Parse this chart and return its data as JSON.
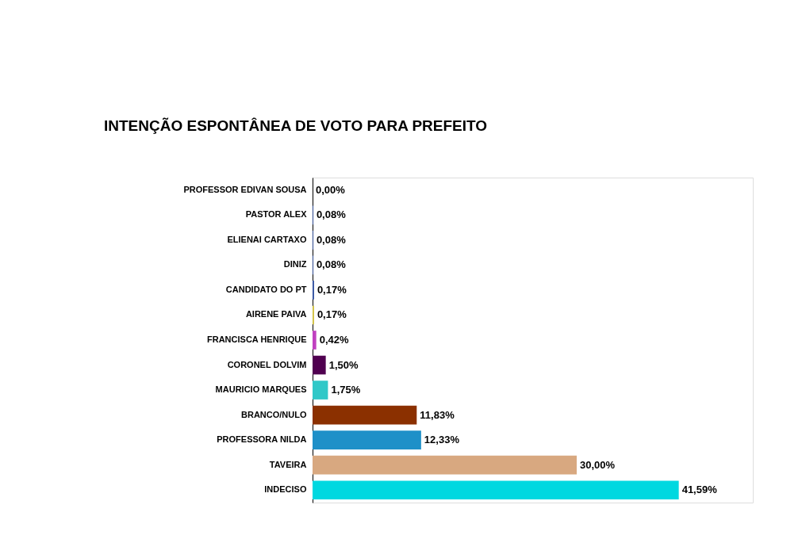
{
  "chart_data": {
    "type": "bar",
    "orientation": "horizontal",
    "title": "INTENÇÃO ESPONTÂNEA DE VOTO PARA PREFEITO",
    "categories": [
      "PROFESSOR EDIVAN SOUSA",
      "PASTOR ALEX",
      "ELIENAI CARTAXO",
      "DINIZ",
      "CANDIDATO DO PT",
      "AIRENE PAIVA",
      "FRANCISCA HENRIQUE",
      "CORONEL DOLVIM",
      "MAURICIO MARQUES",
      "BRANCO/NULO",
      "PROFESSORA NILDA",
      "TAVEIRA",
      "INDECISO"
    ],
    "values": [
      0.0,
      0.08,
      0.08,
      0.08,
      0.17,
      0.17,
      0.42,
      1.5,
      1.75,
      11.83,
      12.33,
      30.0,
      41.59
    ],
    "value_labels": [
      "0,00%",
      "0,08%",
      "0,08%",
      "0,08%",
      "0,17%",
      "0,17%",
      "0,42%",
      "1,50%",
      "1,75%",
      "11,83%",
      "12,33%",
      "30,00%",
      "41,59%"
    ],
    "colors": [
      "#3050a0",
      "#3050a0",
      "#3050a0",
      "#3050a0",
      "#3050a0",
      "#d0c040",
      "#c040c0",
      "#500050",
      "#30c8c8",
      "#8b3000",
      "#1e90c8",
      "#d8a880",
      "#00d8e0"
    ],
    "xlim": [
      0,
      50
    ]
  }
}
